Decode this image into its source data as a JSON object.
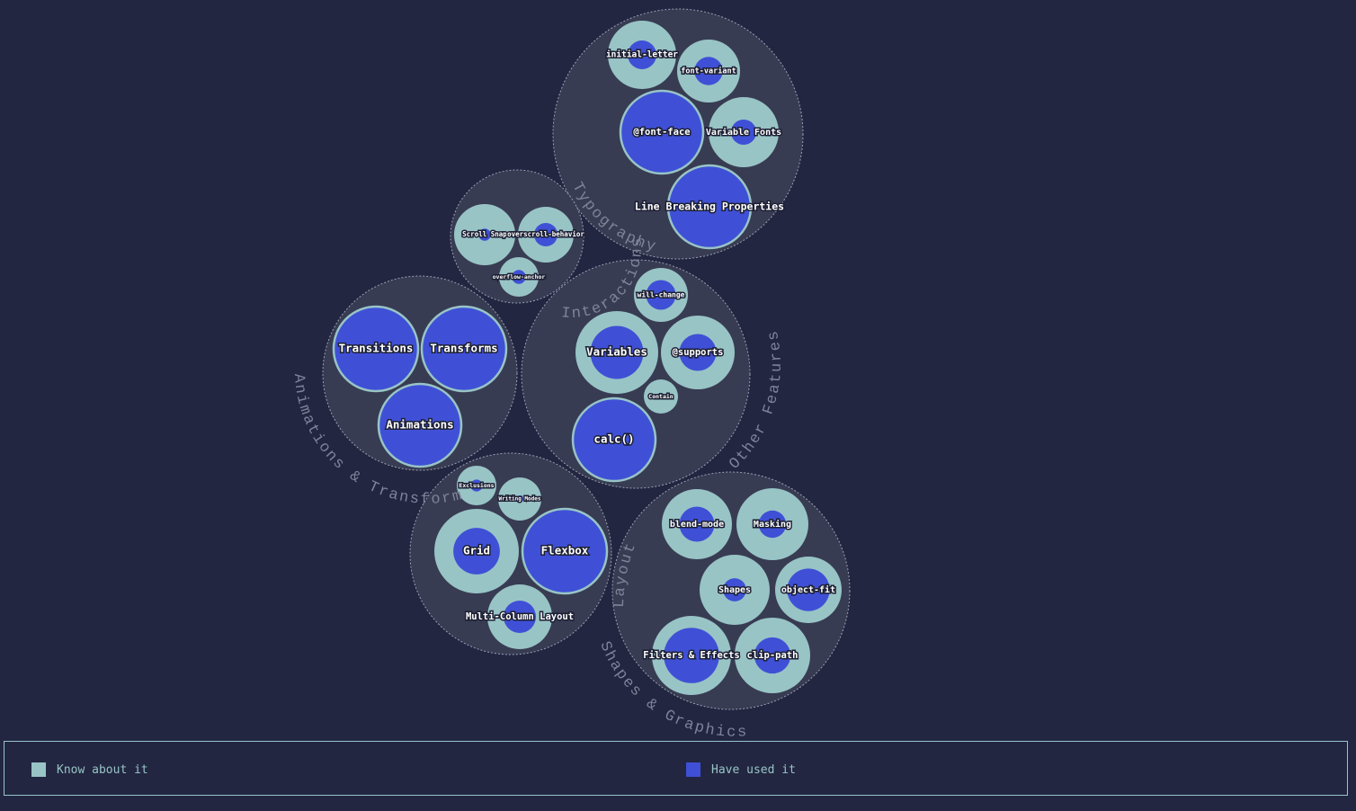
{
  "colors": {
    "know": "#98c4c6",
    "used": "#3f50d6",
    "group": "#383c52",
    "background": "#222641"
  },
  "legend": {
    "know_label": "Know about it",
    "used_label": "Have used it"
  },
  "chart_data": {
    "type": "circle-packing",
    "measure": "share of respondents who have used the feature (inner circle) vs. know about it (outer circle)",
    "groups": [
      {
        "name": "Typography",
        "features": [
          {
            "name": "initial-letter",
            "used_ratio": 0.42
          },
          {
            "name": "font-variant",
            "used_ratio": 0.45
          },
          {
            "name": "@font-face",
            "used_ratio": 1.0
          },
          {
            "name": "Variable Fonts",
            "used_ratio": 0.36
          },
          {
            "name": "Line Breaking Properties",
            "used_ratio": 1.0
          }
        ]
      },
      {
        "name": "Interactions",
        "features": [
          {
            "name": "Scroll Snap",
            "used_ratio": 0.2
          },
          {
            "name": "overscroll-behavior",
            "used_ratio": 0.42
          },
          {
            "name": "overflow-anchor",
            "used_ratio": 0.35
          }
        ]
      },
      {
        "name": "Animations & Transforms",
        "features": [
          {
            "name": "Transitions",
            "used_ratio": 1.0
          },
          {
            "name": "Transforms",
            "used_ratio": 1.0
          },
          {
            "name": "Animations",
            "used_ratio": 1.0
          }
        ]
      },
      {
        "name": "Other Features",
        "features": [
          {
            "name": "will-change",
            "used_ratio": 0.55
          },
          {
            "name": "Variables",
            "used_ratio": 0.64
          },
          {
            "name": "@supports",
            "used_ratio": 0.5
          },
          {
            "name": "Contain",
            "used_ratio": 0.0
          },
          {
            "name": "calc()",
            "used_ratio": 1.0
          }
        ]
      },
      {
        "name": "Layout",
        "features": [
          {
            "name": "Exclusions",
            "used_ratio": 0.3
          },
          {
            "name": "Writing Modes",
            "used_ratio": 0.1
          },
          {
            "name": "Grid",
            "used_ratio": 0.55
          },
          {
            "name": "Flexbox",
            "used_ratio": 1.0
          },
          {
            "name": "Multi-Column Layout",
            "used_ratio": 0.5
          }
        ]
      },
      {
        "name": "Shapes & Graphics",
        "features": [
          {
            "name": "blend-mode",
            "used_ratio": 0.5
          },
          {
            "name": "Masking",
            "used_ratio": 0.38
          },
          {
            "name": "Shapes",
            "used_ratio": 0.33
          },
          {
            "name": "object-fit",
            "used_ratio": 0.64
          },
          {
            "name": "Filters & Effects",
            "used_ratio": 0.7
          },
          {
            "name": "clip-path",
            "used_ratio": 0.48
          }
        ]
      }
    ]
  }
}
